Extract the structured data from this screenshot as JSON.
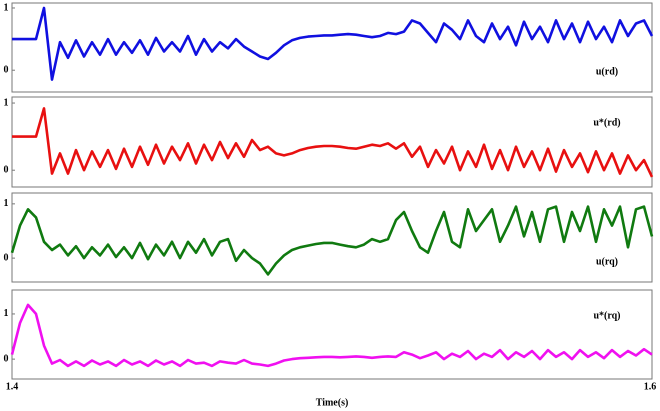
{
  "chart_data": [
    {
      "type": "line",
      "xlim": [
        1.4,
        1.6
      ],
      "ylim": [
        -0.35,
        1.08
      ],
      "yticks": [
        0,
        1
      ],
      "legend_loc": "lower right",
      "x": [
        1.4,
        1.4025,
        1.405,
        1.4075,
        1.41,
        1.4125,
        1.415,
        1.4175,
        1.42,
        1.4225,
        1.425,
        1.4275,
        1.43,
        1.4325,
        1.435,
        1.4375,
        1.44,
        1.4425,
        1.445,
        1.4475,
        1.45,
        1.4525,
        1.455,
        1.4575,
        1.46,
        1.4625,
        1.465,
        1.4675,
        1.47,
        1.4725,
        1.475,
        1.4775,
        1.48,
        1.4825,
        1.485,
        1.4875,
        1.49,
        1.4925,
        1.495,
        1.4975,
        1.5,
        1.5025,
        1.505,
        1.5075,
        1.51,
        1.5125,
        1.515,
        1.5175,
        1.52,
        1.5225,
        1.525,
        1.5275,
        1.53,
        1.5325,
        1.535,
        1.5375,
        1.54,
        1.5425,
        1.545,
        1.5475,
        1.55,
        1.5525,
        1.555,
        1.5575,
        1.56,
        1.5625,
        1.565,
        1.5675,
        1.57,
        1.5725,
        1.575,
        1.5775,
        1.58,
        1.5825,
        1.585,
        1.5875,
        1.59,
        1.5925,
        1.595,
        1.5975,
        1.6
      ],
      "series": [
        {
          "name": "u(rd)",
          "color": "#1010e0",
          "values": [
            0.5,
            0.5,
            0.5,
            0.5,
            1.0,
            -0.15,
            0.45,
            0.2,
            0.48,
            0.22,
            0.45,
            0.25,
            0.5,
            0.25,
            0.45,
            0.28,
            0.48,
            0.25,
            0.52,
            0.3,
            0.45,
            0.3,
            0.55,
            0.25,
            0.5,
            0.3,
            0.45,
            0.35,
            0.5,
            0.38,
            0.3,
            0.22,
            0.18,
            0.28,
            0.4,
            0.48,
            0.52,
            0.54,
            0.55,
            0.56,
            0.56,
            0.57,
            0.58,
            0.57,
            0.55,
            0.53,
            0.55,
            0.6,
            0.58,
            0.62,
            0.8,
            0.75,
            0.6,
            0.45,
            0.75,
            0.65,
            0.5,
            0.8,
            0.55,
            0.45,
            0.75,
            0.5,
            0.7,
            0.4,
            0.78,
            0.5,
            0.7,
            0.45,
            0.8,
            0.5,
            0.75,
            0.45,
            0.78,
            0.5,
            0.7,
            0.45,
            0.8,
            0.55,
            0.75,
            0.8,
            0.55
          ]
        }
      ]
    },
    {
      "type": "line",
      "xlim": [
        1.4,
        1.6
      ],
      "ylim": [
        -0.25,
        1.09
      ],
      "yticks": [
        0,
        1
      ],
      "legend_loc": "upper right",
      "x": [
        1.4,
        1.4025,
        1.405,
        1.4075,
        1.41,
        1.4125,
        1.415,
        1.4175,
        1.42,
        1.4225,
        1.425,
        1.4275,
        1.43,
        1.4325,
        1.435,
        1.4375,
        1.44,
        1.4425,
        1.445,
        1.4475,
        1.45,
        1.4525,
        1.455,
        1.4575,
        1.46,
        1.4625,
        1.465,
        1.4675,
        1.47,
        1.4725,
        1.475,
        1.4775,
        1.48,
        1.4825,
        1.485,
        1.4875,
        1.49,
        1.4925,
        1.495,
        1.4975,
        1.5,
        1.5025,
        1.505,
        1.5075,
        1.51,
        1.5125,
        1.515,
        1.5175,
        1.52,
        1.5225,
        1.525,
        1.5275,
        1.53,
        1.5325,
        1.535,
        1.5375,
        1.54,
        1.5425,
        1.545,
        1.5475,
        1.55,
        1.5525,
        1.555,
        1.5575,
        1.56,
        1.5625,
        1.565,
        1.5675,
        1.57,
        1.5725,
        1.575,
        1.5775,
        1.58,
        1.5825,
        1.585,
        1.5875,
        1.59,
        1.5925,
        1.595,
        1.5975,
        1.6
      ],
      "series": [
        {
          "name": "u*(rd)",
          "color": "#e81010",
          "values": [
            0.5,
            0.5,
            0.5,
            0.5,
            0.92,
            -0.05,
            0.25,
            -0.05,
            0.3,
            0.0,
            0.28,
            0.05,
            0.3,
            0.02,
            0.32,
            0.05,
            0.35,
            0.08,
            0.38,
            0.1,
            0.35,
            0.15,
            0.4,
            0.1,
            0.38,
            0.15,
            0.42,
            0.18,
            0.4,
            0.2,
            0.45,
            0.3,
            0.35,
            0.25,
            0.22,
            0.25,
            0.3,
            0.33,
            0.35,
            0.36,
            0.36,
            0.35,
            0.33,
            0.32,
            0.35,
            0.38,
            0.36,
            0.4,
            0.32,
            0.4,
            0.2,
            0.35,
            0.05,
            0.3,
            0.1,
            0.35,
            0.0,
            0.28,
            0.05,
            0.38,
            0.02,
            0.3,
            0.0,
            0.35,
            0.05,
            0.28,
            0.0,
            0.32,
            -0.02,
            0.3,
            0.05,
            0.25,
            -0.03,
            0.28,
            0.0,
            0.25,
            -0.05,
            0.22,
            0.0,
            0.15,
            -0.1
          ]
        }
      ]
    },
    {
      "type": "line",
      "xlim": [
        1.4,
        1.6
      ],
      "ylim": [
        -0.44,
        1.2
      ],
      "yticks": [
        0,
        1
      ],
      "legend_loc": "lower right",
      "x": [
        1.4,
        1.4025,
        1.405,
        1.4075,
        1.41,
        1.4125,
        1.415,
        1.4175,
        1.42,
        1.4225,
        1.425,
        1.4275,
        1.43,
        1.4325,
        1.435,
        1.4375,
        1.44,
        1.4425,
        1.445,
        1.4475,
        1.45,
        1.4525,
        1.455,
        1.4575,
        1.46,
        1.4625,
        1.465,
        1.4675,
        1.47,
        1.4725,
        1.475,
        1.4775,
        1.48,
        1.4825,
        1.485,
        1.4875,
        1.49,
        1.4925,
        1.495,
        1.4975,
        1.5,
        1.5025,
        1.505,
        1.5075,
        1.51,
        1.5125,
        1.515,
        1.5175,
        1.52,
        1.5225,
        1.525,
        1.5275,
        1.53,
        1.5325,
        1.535,
        1.5375,
        1.54,
        1.5425,
        1.545,
        1.5475,
        1.55,
        1.5525,
        1.555,
        1.5575,
        1.56,
        1.5625,
        1.565,
        1.5675,
        1.57,
        1.5725,
        1.575,
        1.5775,
        1.58,
        1.5825,
        1.585,
        1.5875,
        1.59,
        1.5925,
        1.595,
        1.5975,
        1.6
      ],
      "series": [
        {
          "name": "u(rq)",
          "color": "#107a10",
          "values": [
            0.1,
            0.6,
            0.9,
            0.75,
            0.3,
            0.15,
            0.25,
            0.05,
            0.22,
            0.0,
            0.2,
            0.05,
            0.25,
            0.02,
            0.2,
            0.0,
            0.28,
            -0.02,
            0.25,
            0.05,
            0.3,
            0.0,
            0.3,
            0.1,
            0.35,
            0.05,
            0.3,
            0.35,
            -0.05,
            0.15,
            0.0,
            -0.1,
            -0.3,
            -0.1,
            0.05,
            0.15,
            0.2,
            0.23,
            0.26,
            0.28,
            0.28,
            0.25,
            0.22,
            0.2,
            0.25,
            0.35,
            0.3,
            0.35,
            0.7,
            0.85,
            0.5,
            0.2,
            0.1,
            0.5,
            0.85,
            0.3,
            0.2,
            0.9,
            0.5,
            0.7,
            0.9,
            0.3,
            0.6,
            0.95,
            0.4,
            0.85,
            0.3,
            0.9,
            0.95,
            0.3,
            0.85,
            0.5,
            0.95,
            0.3,
            0.9,
            0.6,
            0.95,
            0.2,
            0.9,
            0.95,
            0.4
          ]
        }
      ]
    },
    {
      "type": "line",
      "xlim": [
        1.4,
        1.6
      ],
      "xticks": [
        1.4,
        1.6
      ],
      "x_label": "Time(s)",
      "ylim": [
        -0.44,
        1.53
      ],
      "yticks": [
        0,
        1
      ],
      "legend_loc": "upper right",
      "x": [
        1.4,
        1.4025,
        1.405,
        1.4075,
        1.41,
        1.4125,
        1.415,
        1.4175,
        1.42,
        1.4225,
        1.425,
        1.4275,
        1.43,
        1.4325,
        1.435,
        1.4375,
        1.44,
        1.4425,
        1.445,
        1.4475,
        1.45,
        1.4525,
        1.455,
        1.4575,
        1.46,
        1.4625,
        1.465,
        1.4675,
        1.47,
        1.4725,
        1.475,
        1.4775,
        1.48,
        1.4825,
        1.485,
        1.4875,
        1.49,
        1.4925,
        1.495,
        1.4975,
        1.5,
        1.5025,
        1.505,
        1.5075,
        1.51,
        1.5125,
        1.515,
        1.5175,
        1.52,
        1.5225,
        1.525,
        1.5275,
        1.53,
        1.5325,
        1.535,
        1.5375,
        1.54,
        1.5425,
        1.545,
        1.5475,
        1.55,
        1.5525,
        1.555,
        1.5575,
        1.56,
        1.5625,
        1.565,
        1.5675,
        1.57,
        1.5725,
        1.575,
        1.5775,
        1.58,
        1.5825,
        1.585,
        1.5875,
        1.59,
        1.5925,
        1.595,
        1.5975,
        1.6
      ],
      "series": [
        {
          "name": "u*(rq)",
          "color": "#f010f0",
          "values": [
            0.1,
            0.8,
            1.2,
            1.0,
            0.3,
            -0.1,
            -0.02,
            -0.15,
            -0.05,
            -0.15,
            -0.03,
            -0.12,
            -0.05,
            -0.15,
            -0.02,
            -0.12,
            -0.05,
            -0.15,
            -0.03,
            -0.12,
            -0.05,
            -0.15,
            -0.02,
            -0.1,
            -0.08,
            -0.15,
            -0.05,
            -0.08,
            -0.1,
            -0.02,
            -0.1,
            -0.12,
            -0.15,
            -0.1,
            -0.03,
            0.0,
            0.02,
            0.03,
            0.04,
            0.05,
            0.05,
            0.04,
            0.05,
            0.06,
            0.05,
            0.03,
            0.05,
            0.06,
            0.05,
            0.15,
            0.1,
            0.02,
            0.08,
            0.15,
            0.0,
            0.12,
            0.05,
            0.18,
            0.0,
            0.12,
            0.05,
            0.2,
            0.0,
            0.15,
            0.05,
            0.18,
            0.0,
            0.2,
            0.05,
            0.15,
            0.0,
            0.2,
            0.05,
            0.15,
            0.02,
            0.2,
            0.05,
            0.18,
            0.08,
            0.22,
            0.1
          ]
        }
      ]
    }
  ]
}
